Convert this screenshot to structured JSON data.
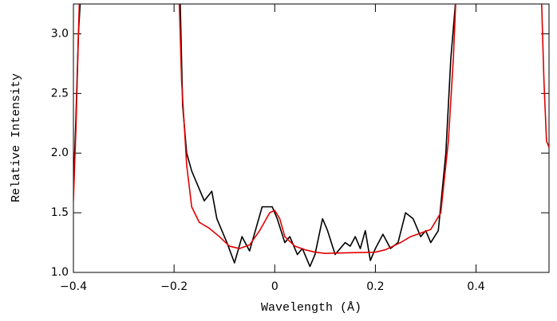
{
  "chart_data": {
    "type": "line",
    "xlabel": "Wavelength (Å)",
    "ylabel": "Relative Intensity",
    "xlim": [
      -0.4,
      0.545
    ],
    "ylim": [
      1.0,
      3.25
    ],
    "xticks": [
      {
        "value": -0.4,
        "label": "−0.4"
      },
      {
        "value": -0.2,
        "label": "−0.2"
      },
      0,
      0.2,
      0.4
    ],
    "yticks": [
      {
        "value": 1.0,
        "label": "1.0"
      },
      1.5,
      {
        "value": 2.0,
        "label": "2.0"
      },
      2.5,
      {
        "value": 3.0,
        "label": "3.0"
      }
    ],
    "series": [
      {
        "color": "#000000",
        "x": [
          -0.4,
          -0.395,
          -0.39,
          -0.386,
          null,
          -0.188,
          -0.183,
          -0.175,
          -0.165,
          -0.14,
          -0.125,
          -0.115,
          -0.095,
          -0.08,
          -0.065,
          -0.05,
          -0.025,
          -0.005,
          0.005,
          0.02,
          0.03,
          0.045,
          0.055,
          0.07,
          0.08,
          0.095,
          0.105,
          0.12,
          0.14,
          0.15,
          0.16,
          0.17,
          0.18,
          0.19,
          0.2,
          0.215,
          0.23,
          0.245,
          0.26,
          0.275,
          0.29,
          0.3,
          0.31,
          0.325,
          0.34,
          0.35,
          0.36
        ],
        "values": [
          1.7,
          2.3,
          3.0,
          3.3,
          null,
          3.3,
          2.4,
          2.0,
          1.85,
          1.6,
          1.68,
          1.45,
          1.25,
          1.08,
          1.3,
          1.18,
          1.55,
          1.55,
          1.45,
          1.25,
          1.3,
          1.15,
          1.2,
          1.05,
          1.15,
          1.45,
          1.35,
          1.15,
          1.25,
          1.22,
          1.3,
          1.2,
          1.35,
          1.1,
          1.2,
          1.32,
          1.2,
          1.25,
          1.5,
          1.45,
          1.3,
          1.35,
          1.25,
          1.35,
          2.0,
          2.8,
          3.3
        ]
      },
      {
        "color": "#e00000",
        "x": [
          -0.4,
          -0.395,
          -0.39,
          -0.388,
          null,
          -0.19,
          -0.185,
          -0.175,
          -0.165,
          -0.15,
          -0.13,
          -0.11,
          -0.09,
          -0.07,
          -0.05,
          -0.03,
          -0.01,
          0,
          0.01,
          0.02,
          0.04,
          0.06,
          0.08,
          0.1,
          0.15,
          0.2,
          0.22,
          0.25,
          0.27,
          0.29,
          0.31,
          0.33,
          0.345,
          0.355,
          0.36,
          null,
          0.53,
          0.535,
          0.54,
          0.545
        ],
        "values": [
          1.6,
          2.2,
          3.0,
          3.3,
          null,
          3.3,
          2.6,
          1.9,
          1.55,
          1.42,
          1.37,
          1.3,
          1.22,
          1.2,
          1.23,
          1.35,
          1.5,
          1.52,
          1.45,
          1.3,
          1.22,
          1.19,
          1.17,
          1.16,
          1.165,
          1.17,
          1.19,
          1.25,
          1.3,
          1.33,
          1.36,
          1.5,
          2.1,
          2.8,
          3.3,
          null,
          3.3,
          2.6,
          2.1,
          2.05
        ]
      }
    ]
  }
}
